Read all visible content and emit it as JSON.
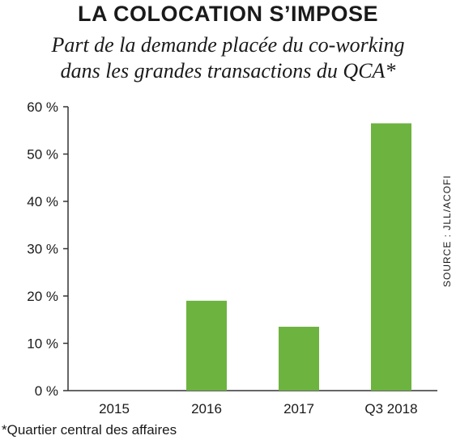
{
  "header": {
    "title": "LA COLOCATION S’IMPOSE",
    "subtitle_line1": "Part de la demande placée du co-working",
    "subtitle_line2": "dans les grandes transactions du QCA*"
  },
  "footnote": "*Quartier central des affaires",
  "source": "SOURCE : JLL/ACOFI",
  "colors": {
    "bar": "#6db33f",
    "axis": "#333333"
  },
  "chart_data": {
    "type": "bar",
    "title": "LA COLOCATION S’IMPOSE",
    "subtitle": "Part de la demande placée du co-working dans les grandes transactions du QCA*",
    "categories": [
      "2015",
      "2016",
      "2017",
      "Q3 2018"
    ],
    "values": [
      0,
      19,
      13.5,
      56.5
    ],
    "ylim": [
      0,
      60
    ],
    "yticks": [
      0,
      10,
      20,
      30,
      40,
      50,
      60
    ],
    "ytick_labels": [
      "0 %",
      "10 %",
      "20 %",
      "30 %",
      "40 %",
      "50 %",
      "60 %"
    ],
    "xlabel": "",
    "ylabel": "",
    "grid": false,
    "legend": "none"
  }
}
